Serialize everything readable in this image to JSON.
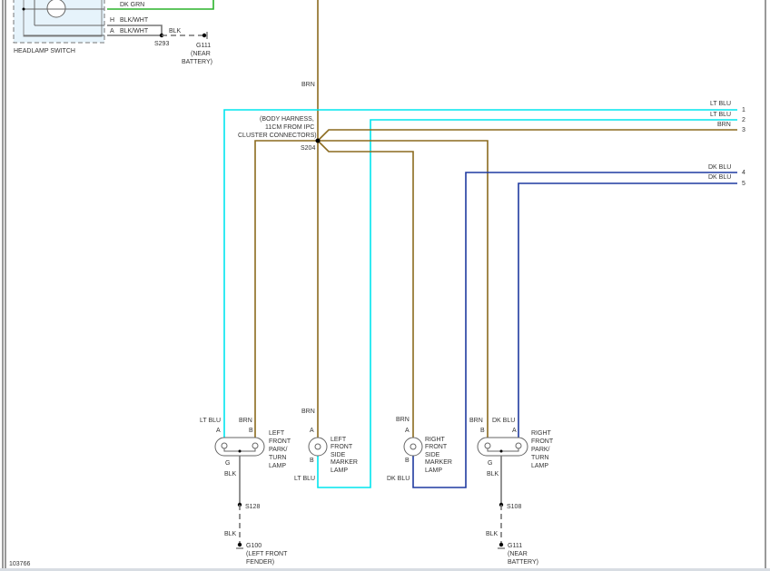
{
  "headlamp_switch": {
    "label": "HEADLAMP SWITCH",
    "wire_top": "DK GRN",
    "pin_h": "H",
    "wire_h": "BLK/WHT",
    "pin_a": "A",
    "wire_a": "BLK/WHT",
    "splice": "S293",
    "ground_wire": "BLK",
    "ground": "G111",
    "ground_loc1": "(NEAR",
    "ground_loc2": "BATTERY)"
  },
  "trunk": {
    "wire_top": "BRN",
    "splice": "S204",
    "note1": "(BODY HARNESS,",
    "note2": "11CM FROM IPC",
    "note3": "CLUSTER CONNECTORS)"
  },
  "outputs": [
    {
      "wire": "LT BLU",
      "num": "1"
    },
    {
      "wire": "LT BLU",
      "num": "2"
    },
    {
      "wire": "BRN",
      "num": "3"
    },
    {
      "wire": "DK BLU",
      "num": "4"
    },
    {
      "wire": "DK BLU",
      "num": "5"
    }
  ],
  "lamps": {
    "left_park": {
      "l1": "LEFT",
      "l2": "FRONT",
      "l3": "PARK/",
      "l4": "TURN",
      "l5": "LAMP",
      "wire_a": "LT BLU",
      "pin_a": "A",
      "wire_b": "BRN",
      "pin_b": "B",
      "pin_g": "G",
      "wire_g": "BLK",
      "splice": "S128",
      "wire_g2": "BLK",
      "ground": "G100",
      "ground_loc1": "(LEFT FRONT",
      "ground_loc2": "FENDER)"
    },
    "left_side": {
      "l1": "LEFT",
      "l2": "FRONT",
      "l3": "SIDE",
      "l4": "MARKER",
      "l5": "LAMP",
      "wire_a": "BRN",
      "pin_a": "A",
      "pin_b": "B",
      "wire_b": "LT BLU"
    },
    "right_side": {
      "l1": "RIGHT",
      "l2": "FRONT",
      "l3": "SIDE",
      "l4": "MARKER",
      "l5": "LAMP",
      "wire_a": "BRN",
      "pin_a": "A",
      "pin_b": "B",
      "wire_b": "DK BLU"
    },
    "right_park": {
      "l1": "RIGHT",
      "l2": "FRONT",
      "l3": "PARK/",
      "l4": "TURN",
      "l5": "LAMP",
      "wire_a": "DK BLU",
      "pin_a": "A",
      "wire_b": "BRN",
      "pin_b": "B",
      "pin_g": "G",
      "wire_g": "BLK",
      "splice": "S108",
      "wire_g2": "BLK",
      "ground": "G111",
      "ground_loc1": "(NEAR",
      "ground_loc2": "BATTERY)"
    }
  },
  "figure_id": "103766"
}
